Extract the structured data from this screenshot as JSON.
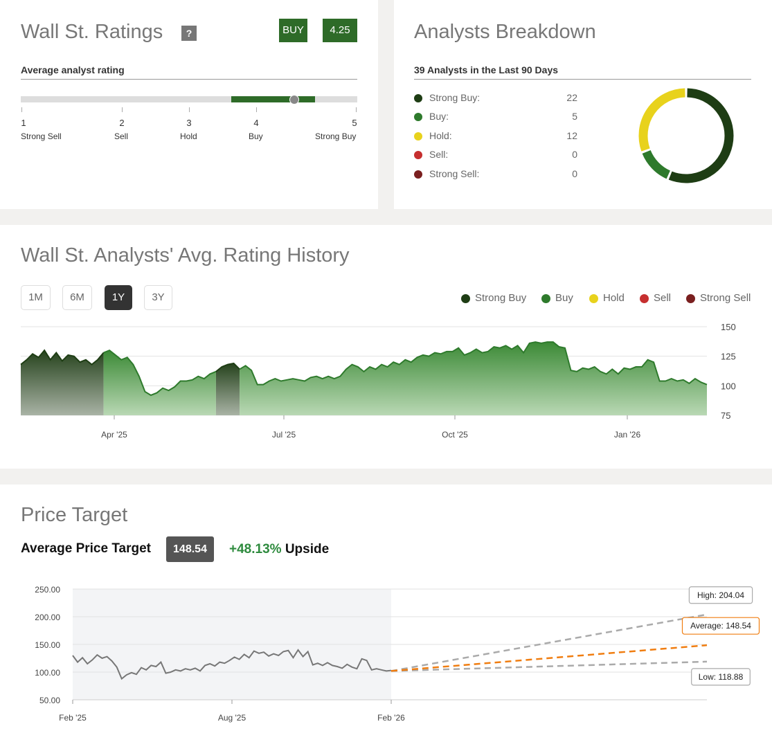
{
  "ratings": {
    "title": "Wall St. Ratings",
    "help_label": "?",
    "rating_label": "BUY",
    "rating_score": "4.25",
    "subtitle": "Average analyst rating",
    "scale": [
      {
        "num": "1",
        "label": "Strong Sell"
      },
      {
        "num": "2",
        "label": "Sell"
      },
      {
        "num": "3",
        "label": "Hold"
      },
      {
        "num": "4",
        "label": "Buy"
      },
      {
        "num": "5",
        "label": "Strong Buy"
      }
    ],
    "marker_value": 4.25,
    "band_range": [
      3.5,
      4.5
    ],
    "band_color": "#2e6b28"
  },
  "breakdown": {
    "title": "Analysts Breakdown",
    "subtitle": "39 Analysts in the Last 90 Days",
    "items": [
      {
        "label": "Strong Buy:",
        "count": "22",
        "color": "#1e3d14"
      },
      {
        "label": "Buy:",
        "count": "5",
        "color": "#2e7a2c"
      },
      {
        "label": "Hold:",
        "count": "12",
        "color": "#e8d21c"
      },
      {
        "label": "Sell:",
        "count": "0",
        "color": "#c62f2f"
      },
      {
        "label": "Strong Sell:",
        "count": "0",
        "color": "#7a1f1f"
      }
    ]
  },
  "history": {
    "title": "Wall St. Analysts' Avg. Rating History",
    "ranges": [
      "1M",
      "6M",
      "1Y",
      "3Y"
    ],
    "active_range": "1Y",
    "legend": [
      {
        "label": "Strong Buy",
        "color": "#1e3d14"
      },
      {
        "label": "Buy",
        "color": "#2e7a2c"
      },
      {
        "label": "Hold",
        "color": "#e8d21c"
      },
      {
        "label": "Sell",
        "color": "#c62f2f"
      },
      {
        "label": "Strong Sell",
        "color": "#7a1f1f"
      }
    ]
  },
  "price_target": {
    "title": "Price Target",
    "avg_label": "Average Price Target",
    "avg_value": "148.54",
    "upside_pct": "+48.13%",
    "upside_word": "Upside",
    "high_label": "High: 204.04",
    "avg_callout": "Average: 148.54",
    "low_label": "Low: 118.88",
    "colors": {
      "avg": "#f07d10",
      "band": "#aaaaaa",
      "price": "#777777"
    }
  },
  "chart_data": [
    {
      "type": "area",
      "name": "rating-history",
      "x_ticks": [
        "Apr '25",
        "Jul '25",
        "Oct '25",
        "Jan '26"
      ],
      "y_ticks": [
        "150",
        "125",
        "100",
        "75"
      ],
      "ylim": [
        75,
        150
      ],
      "values": [
        118,
        122,
        127,
        124,
        130,
        122,
        128,
        121,
        126,
        125,
        120,
        122,
        118,
        122,
        128,
        130,
        126,
        122,
        124,
        118,
        108,
        95,
        92,
        94,
        98,
        96,
        99,
        104,
        104,
        105,
        108,
        106,
        110,
        112,
        116,
        118,
        119,
        114,
        117,
        113,
        101,
        101,
        104,
        106,
        104,
        105,
        106,
        105,
        104,
        107,
        108,
        106,
        108,
        106,
        108,
        114,
        118,
        116,
        112,
        116,
        114,
        118,
        116,
        120,
        118,
        122,
        120,
        124,
        126,
        125,
        128,
        127,
        129,
        129,
        132,
        126,
        128,
        131,
        128,
        129,
        133,
        132,
        134,
        131,
        134,
        128,
        136,
        137,
        136,
        137,
        137,
        133,
        132,
        113,
        112,
        115,
        114,
        116,
        112,
        110,
        114,
        110,
        115,
        114,
        116,
        116,
        122,
        120,
        104,
        104,
        106,
        104,
        105,
        102,
        106,
        103,
        101
      ],
      "series_colors": {
        "strong_buy": "#1e3d14",
        "buy": "#2e7a2c"
      }
    },
    {
      "type": "line",
      "name": "price-target",
      "x_ticks": [
        "Feb '25",
        "Aug '25",
        "Feb '26"
      ],
      "y_ticks": [
        "250.00",
        "200.00",
        "150.00",
        "100.00",
        "50.00"
      ],
      "ylim": [
        50,
        250
      ],
      "price": [
        130,
        118,
        126,
        115,
        122,
        131,
        125,
        128,
        120,
        109,
        88,
        95,
        99,
        96,
        108,
        104,
        112,
        110,
        118,
        98,
        100,
        104,
        102,
        106,
        104,
        107,
        102,
        112,
        115,
        111,
        118,
        116,
        121,
        127,
        123,
        132,
        126,
        138,
        134,
        136,
        129,
        133,
        130,
        137,
        139,
        126,
        140,
        128,
        137,
        113,
        116,
        112,
        117,
        112,
        110,
        107,
        114,
        109,
        106,
        124,
        121,
        104,
        106,
        104,
        102,
        103
      ],
      "targets": {
        "high": 204.04,
        "average": 148.54,
        "low": 118.88
      },
      "start_value": 102
    }
  ]
}
